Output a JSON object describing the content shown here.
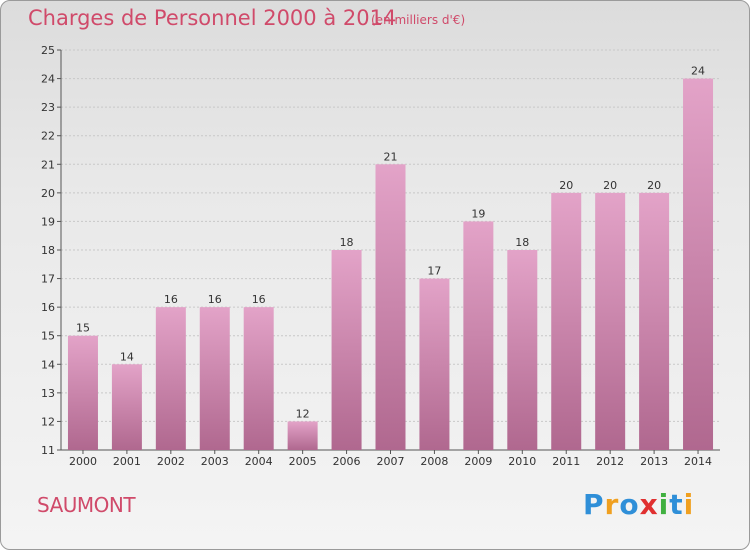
{
  "title": "Charges de Personnel 2000 à 2014",
  "subtitle": "(en milliers d'€)",
  "city": "SAUMONT",
  "logo": {
    "text": "Proxiti",
    "letters": [
      {
        "ch": "P",
        "color": "#2f8fd8"
      },
      {
        "ch": "r",
        "color": "#f0a020"
      },
      {
        "ch": "o",
        "color": "#2f8fd8"
      },
      {
        "ch": "x",
        "color": "#e03030"
      },
      {
        "ch": "i",
        "color": "#40b040"
      },
      {
        "ch": "t",
        "color": "#2f8fd8"
      },
      {
        "ch": "i",
        "color": "#f0a020"
      }
    ]
  },
  "colors": {
    "bar_top": "#e3a3c8",
    "bar_bottom": "#b0688f",
    "accent": "#d04a6a"
  },
  "chart_data": {
    "type": "bar",
    "title": "Charges de Personnel 2000 à 2014",
    "subtitle": "(en milliers d'€)",
    "categories": [
      "2000",
      "2001",
      "2002",
      "2003",
      "2004",
      "2005",
      "2006",
      "2007",
      "2008",
      "2009",
      "2010",
      "2011",
      "2012",
      "2013",
      "2014"
    ],
    "values": [
      15,
      14,
      16,
      16,
      16,
      12,
      18,
      21,
      17,
      19,
      18,
      20,
      20,
      20,
      24
    ],
    "ylim": [
      11,
      25
    ],
    "yticks": [
      11,
      12,
      13,
      14,
      15,
      16,
      17,
      18,
      19,
      20,
      21,
      22,
      23,
      24,
      25
    ],
    "grid": true
  }
}
